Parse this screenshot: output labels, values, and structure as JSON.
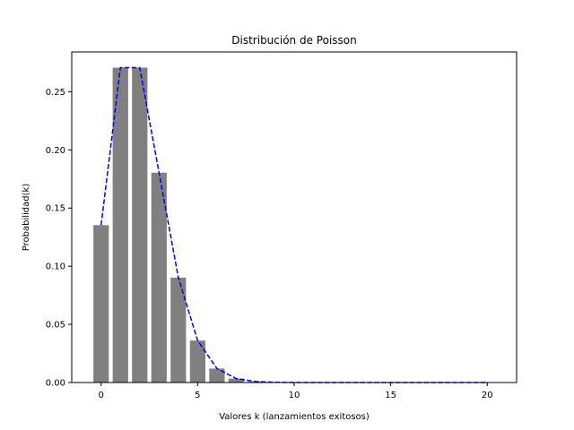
{
  "chart_data": {
    "type": "bar",
    "title": "Distribución de Poisson",
    "xlabel": "Valores k (lanzamientos exitosos)",
    "ylabel": "Probabilidad(k)",
    "xlim": [
      -1.52,
      21.52
    ],
    "ylim": [
      0.0,
      0.2842
    ],
    "xticks": [
      0,
      5,
      10,
      15,
      20
    ],
    "xtick_labels": [
      "0",
      "5",
      "10",
      "15",
      "20"
    ],
    "yticks": [
      0.0,
      0.05,
      0.1,
      0.15,
      0.2,
      0.25
    ],
    "ytick_labels": [
      "0.00",
      "0.05",
      "0.10",
      "0.15",
      "0.20",
      "0.25"
    ],
    "grid": false,
    "colors": {
      "bars": "#808080",
      "line": "#0000ff"
    },
    "x": [
      0,
      1,
      2,
      3,
      4,
      5,
      6,
      7,
      8,
      9,
      10,
      11,
      12,
      13,
      14,
      15,
      16,
      17,
      18,
      19,
      20
    ],
    "series": [
      {
        "type": "bar",
        "values": [
          0.1353,
          0.2707,
          0.2707,
          0.1804,
          0.0902,
          0.0361,
          0.012,
          0.0034,
          0.0009,
          0.0002,
          4e-05,
          1e-05,
          0.0,
          0.0,
          0.0,
          0.0,
          0.0,
          0.0,
          0.0,
          0.0,
          0.0
        ]
      },
      {
        "type": "line",
        "style": "dashed",
        "values": [
          0.1353,
          0.2707,
          0.2707,
          0.1804,
          0.0902,
          0.0361,
          0.012,
          0.0034,
          0.0009,
          0.0002,
          4e-05,
          1e-05,
          0.0,
          0.0,
          0.0,
          0.0,
          0.0,
          0.0,
          0.0,
          0.0,
          0.0
        ]
      }
    ]
  }
}
